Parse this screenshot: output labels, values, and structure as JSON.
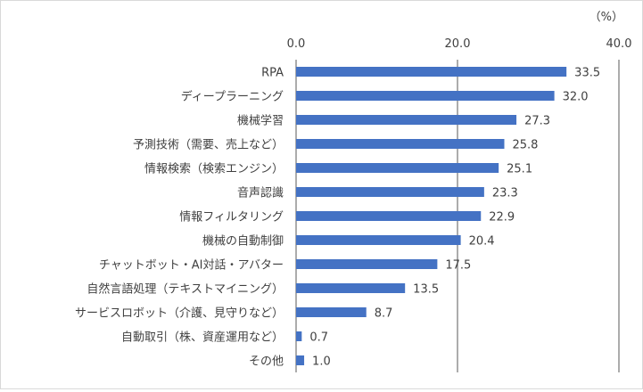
{
  "chart_data": {
    "type": "bar",
    "orientation": "horizontal",
    "unit_label": "（%）",
    "xlim": [
      0,
      40
    ],
    "xticks": [
      "0.0",
      "20.0",
      "40.0"
    ],
    "grid": true,
    "legend": "none",
    "bar_color": "#4472c4",
    "categories": [
      "RPA",
      "ディープラーニング",
      "機械学習",
      "予測技術（需要、売上など）",
      "情報検索（検索エンジン）",
      "音声認識",
      "情報フィルタリング",
      "機械の自動制御",
      "チャットボット・AI対話・アバター",
      "自然言語処理（テキストマイニング）",
      "サービスロボット（介護、見守りなど）",
      "自動取引（株、資産運用など）",
      "その他"
    ],
    "values": [
      33.5,
      32.0,
      27.3,
      25.8,
      25.1,
      23.3,
      22.9,
      20.4,
      17.5,
      13.5,
      8.7,
      0.7,
      1.0
    ],
    "value_labels": [
      "33.5",
      "32.0",
      "27.3",
      "25.8",
      "25.1",
      "23.3",
      "22.9",
      "20.4",
      "17.5",
      "13.5",
      "8.7",
      "0.7",
      "1.0"
    ]
  }
}
